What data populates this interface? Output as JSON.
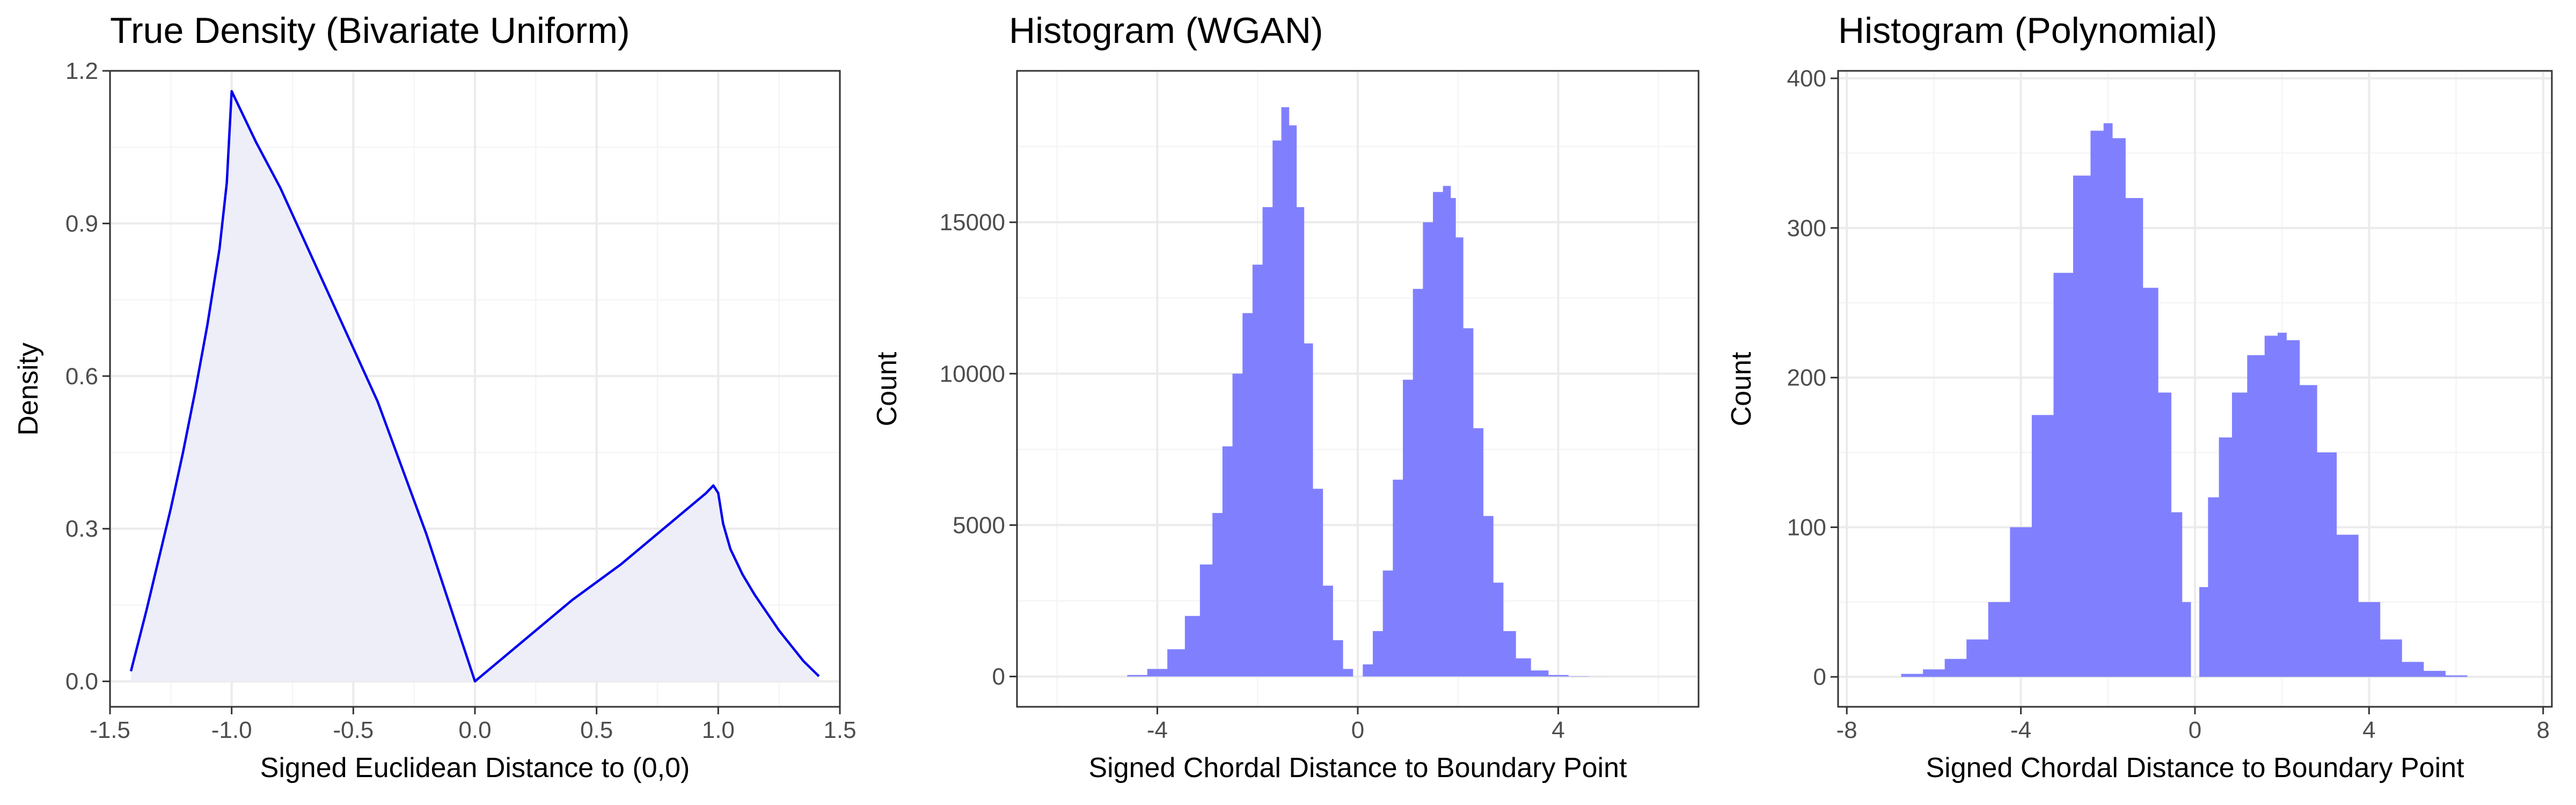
{
  "chart_data": [
    {
      "type": "area",
      "title": "True Density (Bivariate Uniform)",
      "xlabel": "Signed Euclidean Distance to (0,0)",
      "ylabel": "Density",
      "xlim": [
        -1.5,
        1.5
      ],
      "ylim": [
        -0.05,
        1.2
      ],
      "xticks": [
        -1.5,
        -1.0,
        -0.5,
        0.0,
        0.5,
        1.0,
        1.5
      ],
      "xtick_labels": [
        "-1.5",
        "-1.0",
        "-0.5",
        "0.0",
        "0.5",
        "1.0",
        "1.5"
      ],
      "yticks": [
        0.0,
        0.3,
        0.6,
        0.9,
        1.2
      ],
      "ytick_labels": [
        "0.0",
        "0.3",
        "0.6",
        "0.9",
        "1.2"
      ],
      "grid": true,
      "line_color": "#0000ee",
      "fill_color": "#eeeef8",
      "x": [
        -1.414,
        -1.35,
        -1.3,
        -1.25,
        -1.2,
        -1.15,
        -1.1,
        -1.05,
        -1.02,
        -1.0,
        -0.98,
        -0.9,
        -0.8,
        -0.6,
        -0.4,
        -0.2,
        0.0,
        0.2,
        0.4,
        0.6,
        0.8,
        0.95,
        0.98,
        1.0,
        1.02,
        1.05,
        1.1,
        1.15,
        1.2,
        1.25,
        1.3,
        1.35,
        1.414
      ],
      "y": [
        0.02,
        0.14,
        0.24,
        0.34,
        0.45,
        0.57,
        0.7,
        0.85,
        0.98,
        1.16,
        1.14,
        1.06,
        0.97,
        0.76,
        0.55,
        0.29,
        0.0,
        0.08,
        0.16,
        0.23,
        0.31,
        0.37,
        0.385,
        0.37,
        0.31,
        0.26,
        0.21,
        0.17,
        0.135,
        0.1,
        0.07,
        0.04,
        0.01
      ]
    },
    {
      "type": "bar",
      "title": "Histogram (WGAN)",
      "xlabel": "Signed Chordal Distance to Boundary Point",
      "ylabel": "Count",
      "xlim": [
        -6.8,
        6.8
      ],
      "ylim": [
        -1000,
        20000
      ],
      "xticks": [
        -4,
        0,
        4
      ],
      "xtick_labels": [
        "-4",
        "0",
        "4"
      ],
      "yticks": [
        0,
        5000,
        10000,
        15000
      ],
      "ytick_labels": [
        "0",
        "5000",
        "10000",
        "15000"
      ],
      "grid": true,
      "bar_color": "#8080ff",
      "series": [
        {
          "x": [
            -4.8,
            -4.4,
            -4.0,
            -3.6,
            -3.3,
            -3.0,
            -2.8,
            -2.6,
            -2.4,
            -2.2,
            -2.0,
            -1.8,
            -1.6,
            -1.45,
            -1.3,
            -1.15,
            -1.0,
            -0.8,
            -0.6,
            -0.4,
            -0.2,
            0.0,
            0.2,
            0.4,
            0.6,
            0.8,
            1.0,
            1.2,
            1.4,
            1.6,
            1.8,
            1.9,
            2.0,
            2.2,
            2.4,
            2.6,
            2.8,
            3.0,
            3.3,
            3.6,
            4.0,
            4.4,
            4.8,
            5.2
          ],
          "values": [
            0,
            50,
            250,
            900,
            2000,
            3700,
            5400,
            7600,
            10000,
            12000,
            13600,
            15500,
            17700,
            18800,
            18200,
            15500,
            11000,
            6200,
            3000,
            1200,
            250,
            0,
            400,
            1500,
            3500,
            6500,
            9800,
            12800,
            15000,
            16000,
            16200,
            15800,
            14500,
            11500,
            8200,
            5300,
            3100,
            1500,
            600,
            200,
            50,
            10,
            2,
            0
          ]
        }
      ]
    },
    {
      "type": "bar",
      "title": "Histogram (Polynomial)",
      "xlabel": "Signed Chordal Distance to Boundary Point",
      "ylabel": "Count",
      "xlim": [
        -8.2,
        8.2
      ],
      "ylim": [
        -20,
        405
      ],
      "xticks": [
        -8,
        -4,
        0,
        4,
        8
      ],
      "xtick_labels": [
        "-8",
        "-4",
        "0",
        "4",
        "8"
      ],
      "yticks": [
        0,
        100,
        200,
        300,
        400
      ],
      "ytick_labels": [
        "0",
        "100",
        "200",
        "300",
        "400"
      ],
      "grid": true,
      "bar_color": "#8080ff",
      "series": [
        {
          "x": [
            -7.0,
            -6.5,
            -6.0,
            -5.5,
            -5.0,
            -4.5,
            -4.0,
            -3.5,
            -3.0,
            -2.6,
            -2.2,
            -2.0,
            -1.8,
            -1.4,
            -1.0,
            -0.7,
            -0.4,
            -0.2,
            0.0,
            0.2,
            0.4,
            0.7,
            1.0,
            1.4,
            1.8,
            2.0,
            2.2,
            2.6,
            3.0,
            3.5,
            4.0,
            4.5,
            5.0,
            5.5,
            6.0,
            6.5
          ],
          "values": [
            0,
            2,
            5,
            12,
            25,
            50,
            100,
            175,
            270,
            335,
            365,
            370,
            360,
            320,
            260,
            190,
            110,
            50,
            0,
            60,
            120,
            160,
            190,
            215,
            228,
            230,
            225,
            195,
            150,
            95,
            50,
            25,
            10,
            4,
            1,
            0
          ]
        }
      ]
    }
  ]
}
